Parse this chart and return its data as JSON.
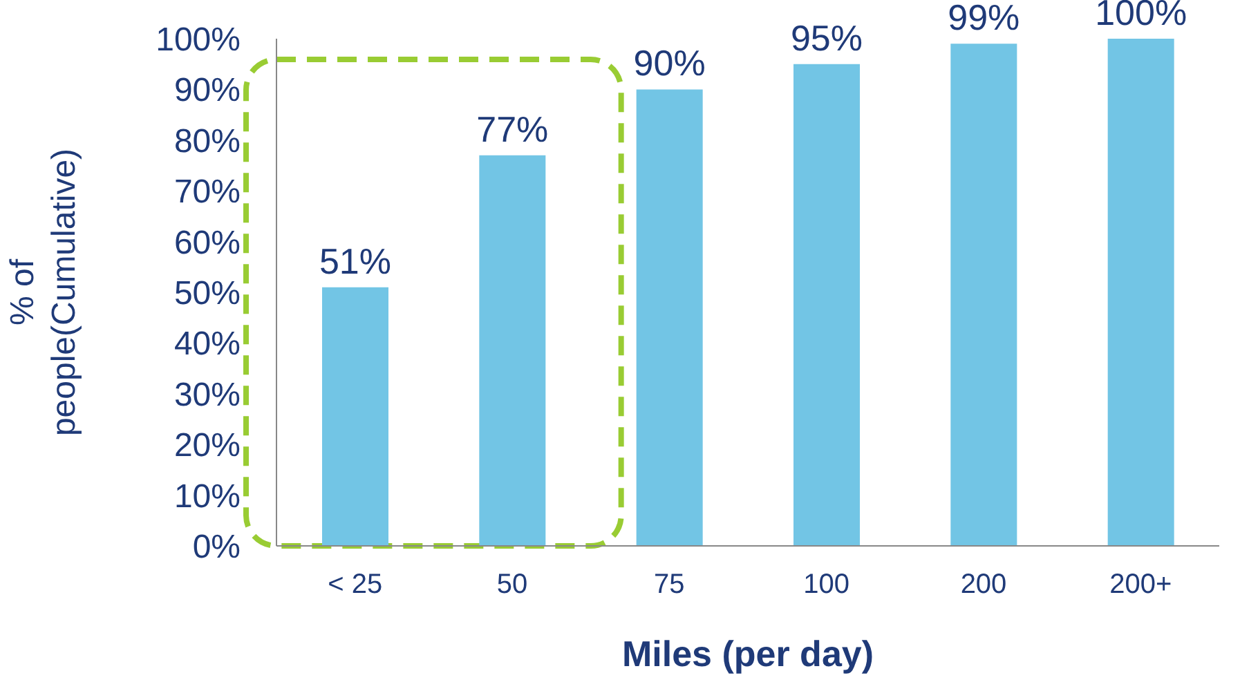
{
  "chart_data": {
    "type": "bar",
    "xlabel": "Miles (per day)",
    "ylabel": "% of\npeople(Cumulative)",
    "categories": [
      "< 25",
      "50",
      "75",
      "100",
      "200",
      "200+"
    ],
    "values": [
      51,
      77,
      90,
      95,
      99,
      100
    ],
    "color": "#72c5e5",
    "value_labels": [
      "51%",
      "77%",
      "90%",
      "95%",
      "99%",
      "100%"
    ],
    "ylim": [
      0,
      100
    ],
    "yticks": [
      {
        "value": 0,
        "label": "0%"
      },
      {
        "value": 10,
        "label": "10%"
      },
      {
        "value": 20,
        "label": "20%"
      },
      {
        "value": 30,
        "label": "30%"
      },
      {
        "value": 40,
        "label": "40%"
      },
      {
        "value": 50,
        "label": "50%"
      },
      {
        "value": 60,
        "label": "60%"
      },
      {
        "value": 70,
        "label": "70%"
      },
      {
        "value": 80,
        "label": "80%"
      },
      {
        "value": 90,
        "label": "90%"
      },
      {
        "value": 100,
        "label": "100%"
      }
    ],
    "grid": false,
    "legend": false
  }
}
